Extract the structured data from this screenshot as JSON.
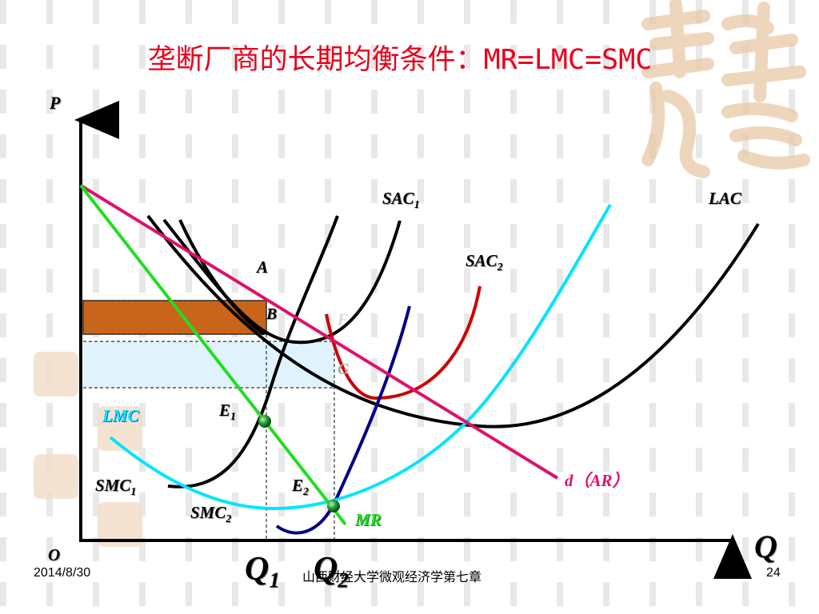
{
  "title": {
    "main": "垄断厂商的长期均衡条件：",
    "condition": "MR=LMC=SMC"
  },
  "axes": {
    "y_label": "P",
    "x_label": "Q",
    "origin": "O"
  },
  "curves": {
    "sac1": {
      "base": "SAC",
      "sub": "1",
      "color": "#000000"
    },
    "sac2": {
      "base": "SAC",
      "sub": "2",
      "color": "#cc0000"
    },
    "lac": {
      "label": "LAC",
      "color": "#000000"
    },
    "smc1": {
      "base": "SMC",
      "sub": "1",
      "color": "#000000"
    },
    "smc2": {
      "base": "SMC",
      "sub": "2",
      "color": "#000080"
    },
    "lmc": {
      "label": "LMC",
      "color": "#00e5ff"
    },
    "demand": {
      "label": "d（AR）",
      "color": "#e0106a"
    },
    "mr": {
      "label": "MR",
      "color": "#22dd22"
    }
  },
  "points": {
    "a": "A",
    "b": "B",
    "f": "F",
    "g": "G",
    "e1": {
      "base": "E",
      "sub": "1"
    },
    "e2": {
      "base": "E",
      "sub": "2"
    }
  },
  "quantities": {
    "q1": {
      "base": "Q",
      "sub": "1"
    },
    "q2": {
      "base": "Q",
      "sub": "2"
    }
  },
  "areas": {
    "profit1_color": "#c8651a",
    "profit2_color": "#e0f2fb"
  },
  "footer": {
    "date": "2014/8/30",
    "course": "山西财经大学微观经济学第七章",
    "page": "24"
  }
}
